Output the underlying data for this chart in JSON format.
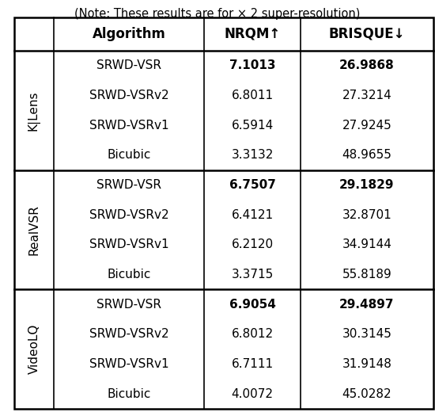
{
  "caption": "(Note: These results are for × 2 super-resolution)",
  "header": [
    "",
    "Algorithm",
    "NRQM↑",
    "BRISQUE↓"
  ],
  "sections": [
    {
      "label": "K|Lens",
      "rows": [
        {
          "algo": "SRWD-VSR",
          "nrqm": "7.1013",
          "brisque": "26.9868",
          "bold_nrqm": true,
          "bold_brisque": true
        },
        {
          "algo": "SRWD-VSRv2",
          "nrqm": "6.8011",
          "brisque": "27.3214",
          "bold_nrqm": false,
          "bold_brisque": false
        },
        {
          "algo": "SRWD-VSRv1",
          "nrqm": "6.5914",
          "brisque": "27.9245",
          "bold_nrqm": false,
          "bold_brisque": false
        },
        {
          "algo": "Bicubic",
          "nrqm": "3.3132",
          "brisque": "48.9655",
          "bold_nrqm": false,
          "bold_brisque": false
        }
      ]
    },
    {
      "label": "RealVSR",
      "rows": [
        {
          "algo": "SRWD-VSR",
          "nrqm": "6.7507",
          "brisque": "29.1829",
          "bold_nrqm": true,
          "bold_brisque": true
        },
        {
          "algo": "SRWD-VSRv2",
          "nrqm": "6.4121",
          "brisque": "32.8701",
          "bold_nrqm": false,
          "bold_brisque": false
        },
        {
          "algo": "SRWD-VSRv1",
          "nrqm": "6.2120",
          "brisque": "34.9144",
          "bold_nrqm": false,
          "bold_brisque": false
        },
        {
          "algo": "Bicubic",
          "nrqm": "3.3715",
          "brisque": "55.8189",
          "bold_nrqm": false,
          "bold_brisque": false
        }
      ]
    },
    {
      "label": "VideoLQ",
      "rows": [
        {
          "algo": "SRWD-VSR",
          "nrqm": "6.9054",
          "brisque": "29.4897",
          "bold_nrqm": true,
          "bold_brisque": true
        },
        {
          "algo": "SRWD-VSRv2",
          "nrqm": "6.8012",
          "brisque": "30.3145",
          "bold_nrqm": false,
          "bold_brisque": false
        },
        {
          "algo": "SRWD-VSRv1",
          "nrqm": "6.7111",
          "brisque": "31.9148",
          "bold_nrqm": false,
          "bold_brisque": false
        },
        {
          "algo": "Bicubic",
          "nrqm": "4.0072",
          "brisque": "45.0282",
          "bold_nrqm": false,
          "bold_brisque": false
        }
      ]
    }
  ],
  "header_fontsize": 12,
  "cell_fontsize": 11,
  "label_fontsize": 11,
  "caption_fontsize": 10.5,
  "fig_width": 5.5,
  "fig_height": 5.2,
  "dpi": 100
}
